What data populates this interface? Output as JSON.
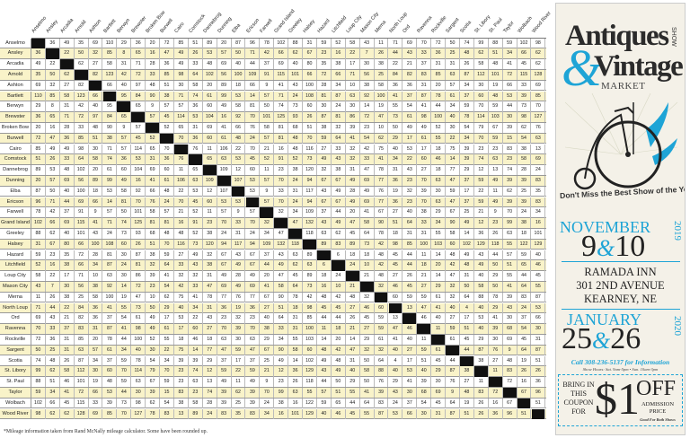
{
  "towns": [
    "Anselmo",
    "Ansley",
    "Arcadia",
    "Arnold",
    "Ashton",
    "Bartlett",
    "Berwyn",
    "Brewster",
    "Broken Bow",
    "Burwell",
    "Cairo",
    "Comstock",
    "Dannebrog",
    "Dunning",
    "Elba",
    "Ericson",
    "Farwell",
    "Grand Island",
    "Greeley",
    "Halsey",
    "Hazard",
    "Litchfield",
    "Loup City",
    "Mason City",
    "Merna",
    "North Loup",
    "Ord",
    "Ravenna",
    "Rockville",
    "Sargent",
    "Scotia",
    "St. Libory",
    "St. Paul",
    "Taylor",
    "Wolbach",
    "Wood River"
  ],
  "mileage": [
    [
      null,
      36,
      49,
      35,
      69,
      110,
      29,
      36,
      20,
      72,
      85,
      51,
      89,
      20,
      87,
      96,
      78,
      102,
      88,
      31,
      59,
      52,
      58,
      43,
      11,
      71,
      69,
      70,
      72,
      50,
      74,
      99,
      88,
      59,
      102,
      98
    ],
    [
      36,
      null,
      22,
      50,
      32,
      85,
      8,
      65,
      16,
      47,
      49,
      26,
      53,
      57,
      50,
      71,
      42,
      66,
      62,
      67,
      23,
      16,
      22,
      7,
      26,
      44,
      43,
      33,
      36,
      25,
      48,
      62,
      51,
      34,
      66,
      62
    ],
    [
      49,
      22,
      null,
      62,
      27,
      58,
      31,
      71,
      28,
      36,
      49,
      33,
      48,
      69,
      40,
      44,
      37,
      69,
      40,
      80,
      35,
      38,
      17,
      30,
      38,
      22,
      21,
      37,
      31,
      31,
      26,
      58,
      48,
      41,
      45,
      62
    ],
    [
      35,
      50,
      62,
      null,
      82,
      123,
      42,
      72,
      33,
      85,
      98,
      64,
      102,
      56,
      100,
      109,
      91,
      115,
      101,
      66,
      72,
      66,
      71,
      56,
      25,
      84,
      82,
      83,
      85,
      63,
      87,
      112,
      101,
      72,
      115,
      128
    ],
    [
      69,
      32,
      27,
      82,
      null,
      66,
      40,
      97,
      48,
      51,
      30,
      58,
      20,
      89,
      18,
      66,
      9,
      41,
      43,
      100,
      28,
      34,
      10,
      38,
      58,
      36,
      36,
      31,
      20,
      57,
      34,
      30,
      19,
      66,
      33,
      69
    ],
    [
      110,
      85,
      58,
      123,
      66,
      null,
      95,
      84,
      90,
      38,
      71,
      74,
      61,
      99,
      53,
      14,
      57,
      71,
      24,
      108,
      81,
      87,
      63,
      92,
      100,
      41,
      37,
      87,
      78,
      61,
      37,
      60,
      48,
      53,
      39,
      85
    ],
    [
      29,
      8,
      31,
      42,
      40,
      95,
      null,
      65,
      9,
      57,
      57,
      36,
      60,
      49,
      58,
      81,
      50,
      74,
      73,
      60,
      30,
      24,
      30,
      14,
      19,
      55,
      54,
      41,
      44,
      34,
      59,
      70,
      59,
      44,
      73,
      70
    ],
    [
      36,
      65,
      71,
      72,
      97,
      84,
      65,
      null,
      57,
      45,
      114,
      53,
      104,
      16,
      92,
      70,
      101,
      125,
      93,
      26,
      87,
      81,
      86,
      72,
      47,
      73,
      61,
      98,
      100,
      40,
      78,
      114,
      103,
      30,
      98,
      127
    ],
    [
      20,
      16,
      28,
      33,
      48,
      90,
      9,
      57,
      null,
      52,
      65,
      31,
      69,
      41,
      66,
      76,
      58,
      81,
      68,
      51,
      38,
      32,
      39,
      23,
      10,
      50,
      49,
      49,
      52,
      30,
      54,
      79,
      67,
      39,
      62,
      76
    ],
    [
      72,
      47,
      36,
      85,
      51,
      38,
      57,
      45,
      52,
      null,
      70,
      36,
      60,
      61,
      48,
      24,
      57,
      81,
      48,
      70,
      59,
      64,
      41,
      54,
      62,
      29,
      17,
      61,
      55,
      22,
      34,
      70,
      59,
      15,
      54,
      63
    ],
    [
      85,
      49,
      49,
      98,
      30,
      71,
      57,
      114,
      65,
      70,
      null,
      76,
      11,
      106,
      22,
      70,
      21,
      16,
      48,
      116,
      27,
      33,
      32,
      42,
      75,
      40,
      53,
      17,
      18,
      75,
      39,
      23,
      23,
      83,
      38,
      13
    ],
    [
      51,
      26,
      33,
      64,
      58,
      74,
      36,
      53,
      31,
      36,
      76,
      null,
      65,
      63,
      53,
      45,
      52,
      91,
      52,
      73,
      49,
      43,
      32,
      33,
      41,
      34,
      22,
      60,
      46,
      14,
      39,
      74,
      63,
      23,
      58,
      69
    ],
    [
      89,
      53,
      48,
      102,
      20,
      61,
      60,
      104,
      69,
      60,
      11,
      65,
      null,
      109,
      12,
      60,
      11,
      23,
      38,
      120,
      32,
      38,
      31,
      47,
      78,
      31,
      43,
      27,
      18,
      77,
      29,
      12,
      13,
      74,
      28,
      24
    ],
    [
      20,
      57,
      69,
      56,
      89,
      99,
      49,
      16,
      41,
      61,
      106,
      63,
      109,
      null,
      107,
      53,
      57,
      70,
      24,
      94,
      67,
      67,
      49,
      69,
      77,
      36,
      23,
      70,
      63,
      47,
      37,
      59,
      49,
      39,
      39,
      83
    ],
    [
      87,
      50,
      40,
      100,
      18,
      53,
      58,
      92,
      66,
      48,
      22,
      53,
      12,
      107,
      null,
      53,
      9,
      33,
      31,
      117,
      43,
      49,
      28,
      49,
      76,
      19,
      32,
      39,
      30,
      59,
      17,
      22,
      11,
      62,
      25,
      35
    ],
    [
      96,
      71,
      44,
      69,
      66,
      14,
      81,
      70,
      76,
      24,
      70,
      45,
      60,
      53,
      53,
      null,
      57,
      70,
      24,
      94,
      67,
      67,
      49,
      69,
      77,
      36,
      23,
      70,
      63,
      47,
      37,
      59,
      49,
      39,
      39,
      83
    ],
    [
      78,
      42,
      37,
      91,
      9,
      57,
      50,
      101,
      58,
      57,
      21,
      52,
      11,
      57,
      9,
      57,
      null,
      32,
      34,
      109,
      37,
      44,
      20,
      41,
      67,
      27,
      40,
      38,
      29,
      67,
      25,
      21,
      9,
      70,
      24,
      34
    ],
    [
      102,
      66,
      69,
      115,
      41,
      71,
      74,
      125,
      81,
      81,
      16,
      91,
      23,
      70,
      33,
      70,
      32,
      null,
      47,
      132,
      43,
      49,
      47,
      58,
      90,
      51,
      64,
      33,
      34,
      90,
      49,
      12,
      23,
      99,
      38,
      16
    ],
    [
      88,
      62,
      40,
      101,
      43,
      24,
      73,
      93,
      68,
      48,
      48,
      52,
      38,
      24,
      31,
      24,
      34,
      47,
      null,
      118,
      63,
      62,
      45,
      64,
      78,
      18,
      31,
      31,
      55,
      58,
      14,
      36,
      26,
      63,
      18,
      101
    ],
    [
      31,
      67,
      80,
      66,
      100,
      108,
      60,
      26,
      51,
      70,
      116,
      73,
      120,
      94,
      117,
      94,
      109,
      132,
      118,
      null,
      89,
      83,
      89,
      73,
      42,
      98,
      85,
      100,
      103,
      60,
      102,
      129,
      118,
      55,
      122,
      129
    ],
    [
      59,
      23,
      35,
      72,
      28,
      81,
      30,
      87,
      38,
      59,
      27,
      49,
      32,
      67,
      43,
      67,
      37,
      43,
      63,
      89,
      null,
      6,
      18,
      18,
      48,
      45,
      44,
      11,
      14,
      48,
      49,
      43,
      44,
      57,
      59,
      40
    ],
    [
      52,
      16,
      38,
      66,
      34,
      87,
      24,
      81,
      32,
      64,
      33,
      43,
      38,
      67,
      49,
      67,
      44,
      49,
      62,
      63,
      6,
      null,
      24,
      10,
      42,
      45,
      44,
      18,
      20,
      42,
      48,
      49,
      50,
      51,
      65,
      46
    ],
    [
      58,
      22,
      17,
      71,
      10,
      63,
      30,
      86,
      39,
      41,
      32,
      32,
      31,
      49,
      28,
      49,
      20,
      47,
      45,
      89,
      18,
      24,
      null,
      21,
      48,
      27,
      26,
      21,
      14,
      47,
      31,
      40,
      29,
      55,
      44,
      45
    ],
    [
      43,
      7,
      30,
      56,
      38,
      92,
      14,
      72,
      23,
      54,
      42,
      33,
      47,
      69,
      49,
      69,
      41,
      58,
      64,
      73,
      16,
      10,
      21,
      null,
      32,
      46,
      45,
      27,
      29,
      32,
      50,
      58,
      50,
      41,
      64,
      55
    ],
    [
      11,
      26,
      38,
      25,
      58,
      100,
      19,
      47,
      10,
      62,
      75,
      41,
      78,
      77,
      76,
      77,
      67,
      90,
      78,
      42,
      48,
      42,
      48,
      32,
      null,
      60,
      59,
      59,
      61,
      32,
      64,
      88,
      78,
      39,
      83,
      87
    ],
    [
      71,
      44,
      22,
      84,
      36,
      41,
      55,
      73,
      50,
      29,
      40,
      34,
      31,
      36,
      19,
      36,
      27,
      51,
      18,
      98,
      45,
      45,
      27,
      46,
      60,
      null,
      13,
      47,
      41,
      40,
      4,
      40,
      29,
      43,
      24,
      53
    ],
    [
      69,
      43,
      21,
      82,
      36,
      37,
      54,
      61,
      49,
      17,
      53,
      22,
      43,
      23,
      32,
      23,
      40,
      64,
      31,
      85,
      44,
      44,
      26,
      45,
      59,
      13,
      null,
      46,
      40,
      27,
      17,
      53,
      41,
      30,
      37,
      66
    ],
    [
      70,
      33,
      37,
      83,
      31,
      87,
      41,
      98,
      49,
      61,
      17,
      60,
      27,
      70,
      39,
      70,
      38,
      33,
      31,
      100,
      11,
      18,
      21,
      27,
      59,
      47,
      46,
      null,
      11,
      59,
      51,
      40,
      39,
      68,
      54,
      30
    ],
    [
      72,
      36,
      31,
      85,
      20,
      78,
      44,
      100,
      52,
      55,
      18,
      46,
      18,
      63,
      30,
      63,
      29,
      34,
      55,
      103,
      14,
      20,
      14,
      29,
      61,
      41,
      40,
      11,
      null,
      61,
      45,
      29,
      30,
      69,
      45,
      31
    ],
    [
      50,
      25,
      31,
      63,
      57,
      61,
      34,
      40,
      30,
      22,
      75,
      14,
      77,
      47,
      59,
      47,
      67,
      90,
      58,
      60,
      48,
      42,
      47,
      32,
      32,
      40,
      27,
      59,
      61,
      null,
      44,
      87,
      76,
      9,
      64,
      87
    ],
    [
      74,
      48,
      26,
      87,
      34,
      37,
      59,
      78,
      54,
      34,
      39,
      39,
      29,
      37,
      17,
      37,
      25,
      49,
      14,
      102,
      49,
      48,
      31,
      50,
      64,
      4,
      17,
      51,
      45,
      44,
      null,
      38,
      27,
      48,
      19,
      51
    ],
    [
      99,
      62,
      58,
      112,
      30,
      60,
      70,
      114,
      79,
      70,
      23,
      74,
      12,
      59,
      22,
      59,
      21,
      12,
      36,
      129,
      43,
      49,
      40,
      58,
      88,
      40,
      53,
      40,
      29,
      87,
      38,
      null,
      11,
      83,
      26,
      26
    ],
    [
      88,
      51,
      46,
      101,
      19,
      48,
      59,
      63,
      67,
      59,
      23,
      63,
      13,
      49,
      11,
      49,
      9,
      23,
      26,
      118,
      44,
      50,
      29,
      50,
      76,
      29,
      41,
      39,
      30,
      76,
      27,
      11,
      null,
      72,
      16,
      36
    ],
    [
      59,
      34,
      41,
      72,
      66,
      53,
      44,
      30,
      39,
      15,
      83,
      23,
      74,
      39,
      62,
      39,
      70,
      99,
      63,
      55,
      57,
      51,
      55,
      41,
      39,
      43,
      30,
      68,
      69,
      9,
      48,
      83,
      72,
      null,
      67,
      96
    ],
    [
      102,
      66,
      45,
      115,
      33,
      39,
      73,
      98,
      62,
      54,
      38,
      58,
      28,
      39,
      25,
      39,
      24,
      38,
      16,
      122,
      59,
      65,
      44,
      64,
      83,
      24,
      37,
      54,
      45,
      64,
      19,
      26,
      16,
      67,
      null,
      51
    ],
    [
      98,
      62,
      62,
      128,
      69,
      85,
      70,
      127,
      78,
      83,
      13,
      89,
      24,
      83,
      35,
      83,
      34,
      16,
      101,
      129,
      40,
      46,
      45,
      55,
      87,
      53,
      66,
      30,
      31,
      87,
      51,
      26,
      36,
      96,
      51,
      null
    ]
  ],
  "footnote": "*Mileage information taken from Rand McNally mileage calculator. Some have been rounded up.",
  "colors": {
    "stripe": "#f9f3c9",
    "diagonal": "#111111",
    "accent": "#1ea4d6"
  },
  "ad": {
    "title_1": "Antiques",
    "title_show": "SHOW",
    "ampersand": "&",
    "title_2": "Vintage",
    "title_market": "MARKET",
    "tagline": "Don't Miss the Best Show of the Year",
    "show1": {
      "month": "NOVEMBER",
      "day1": "9",
      "amp": "&",
      "day2": "10",
      "year": "2019"
    },
    "venue": [
      "RAMADA INN",
      "301 2ND AVENUE",
      "KEARNEY, NE"
    ],
    "show2": {
      "month": "JANUARY",
      "day1": "25",
      "amp": "&",
      "day2": "26",
      "year": "2020"
    },
    "phone": "Call 308-236-5137 for Information",
    "hours": "Show Hours: Sat. 9am-5pm • Sun. 10am-3pm",
    "coupon": {
      "left": [
        "BRING IN",
        "THIS",
        "COUPON",
        "FOR"
      ],
      "amount": "$1",
      "off": "OFF",
      "right": [
        "ADMISSION",
        "PRICE"
      ],
      "note": "Good For Both Shows"
    }
  }
}
